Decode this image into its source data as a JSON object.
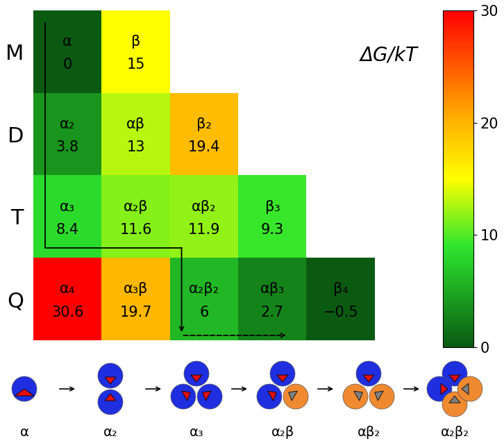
{
  "chart_data": {
    "type": "heatmap",
    "rows": [
      "M",
      "D",
      "T",
      "Q"
    ],
    "tick_labels": "y",
    "cells": [
      [
        {
          "label": "α",
          "value": 0
        },
        {
          "label": "β",
          "value": 15
        }
      ],
      [
        {
          "label": "α₂",
          "value": 3.8
        },
        {
          "label": "αβ",
          "value": 13
        },
        {
          "label": "β₂",
          "value": 19.4
        }
      ],
      [
        {
          "label": "α₃",
          "value": 8.4
        },
        {
          "label": "α₂β",
          "value": 11.6
        },
        {
          "label": "αβ₂",
          "value": 11.9
        },
        {
          "label": "β₃",
          "value": 9.3
        }
      ],
      [
        {
          "label": "α₄",
          "value": 30.6
        },
        {
          "label": "α₃β",
          "value": 19.7
        },
        {
          "label": "α₂β₂",
          "value": 6
        },
        {
          "label": "αβ₃",
          "value": 2.7
        },
        {
          "label": "β₄",
          "value": -0.5,
          "value_label": "−0.5"
        }
      ]
    ],
    "colorbar": {
      "label": "ΔG/kT",
      "range": [
        0,
        30
      ],
      "ticks": [
        0,
        10,
        20,
        30
      ]
    },
    "pathway": [
      "α",
      "α₂",
      "α₃",
      "α₂β",
      "αβ₂",
      "α₂β₂"
    ],
    "dashed_path": [
      "α₂β₂",
      "αβ₃"
    ]
  }
}
